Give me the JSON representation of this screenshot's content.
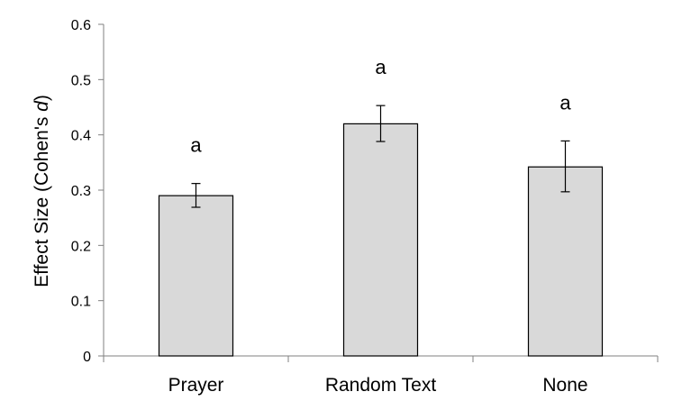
{
  "chart_data": {
    "type": "bar",
    "categories": [
      "Prayer",
      "Random Text",
      "None"
    ],
    "values": [
      0.29,
      0.42,
      0.342
    ],
    "error_low": [
      0.269,
      0.388,
      0.297
    ],
    "error_high": [
      0.312,
      0.453,
      0.389
    ],
    "annotations": [
      "a",
      "a",
      "a"
    ],
    "ylabel_prefix": "Effect Size (Cohen's ",
    "ylabel_italic": "d",
    "ylabel_suffix": ")",
    "ylim": [
      0,
      0.6
    ],
    "yticks": [
      "0",
      "0.1",
      "0.2",
      "0.3",
      "0.4",
      "0.5",
      "0.6"
    ],
    "tick_values": [
      0,
      0.1,
      0.2,
      0.3,
      0.4,
      0.5,
      0.6
    ],
    "bar_color": "#d9d9d9",
    "bar_stroke": "#000000",
    "grid": false
  }
}
